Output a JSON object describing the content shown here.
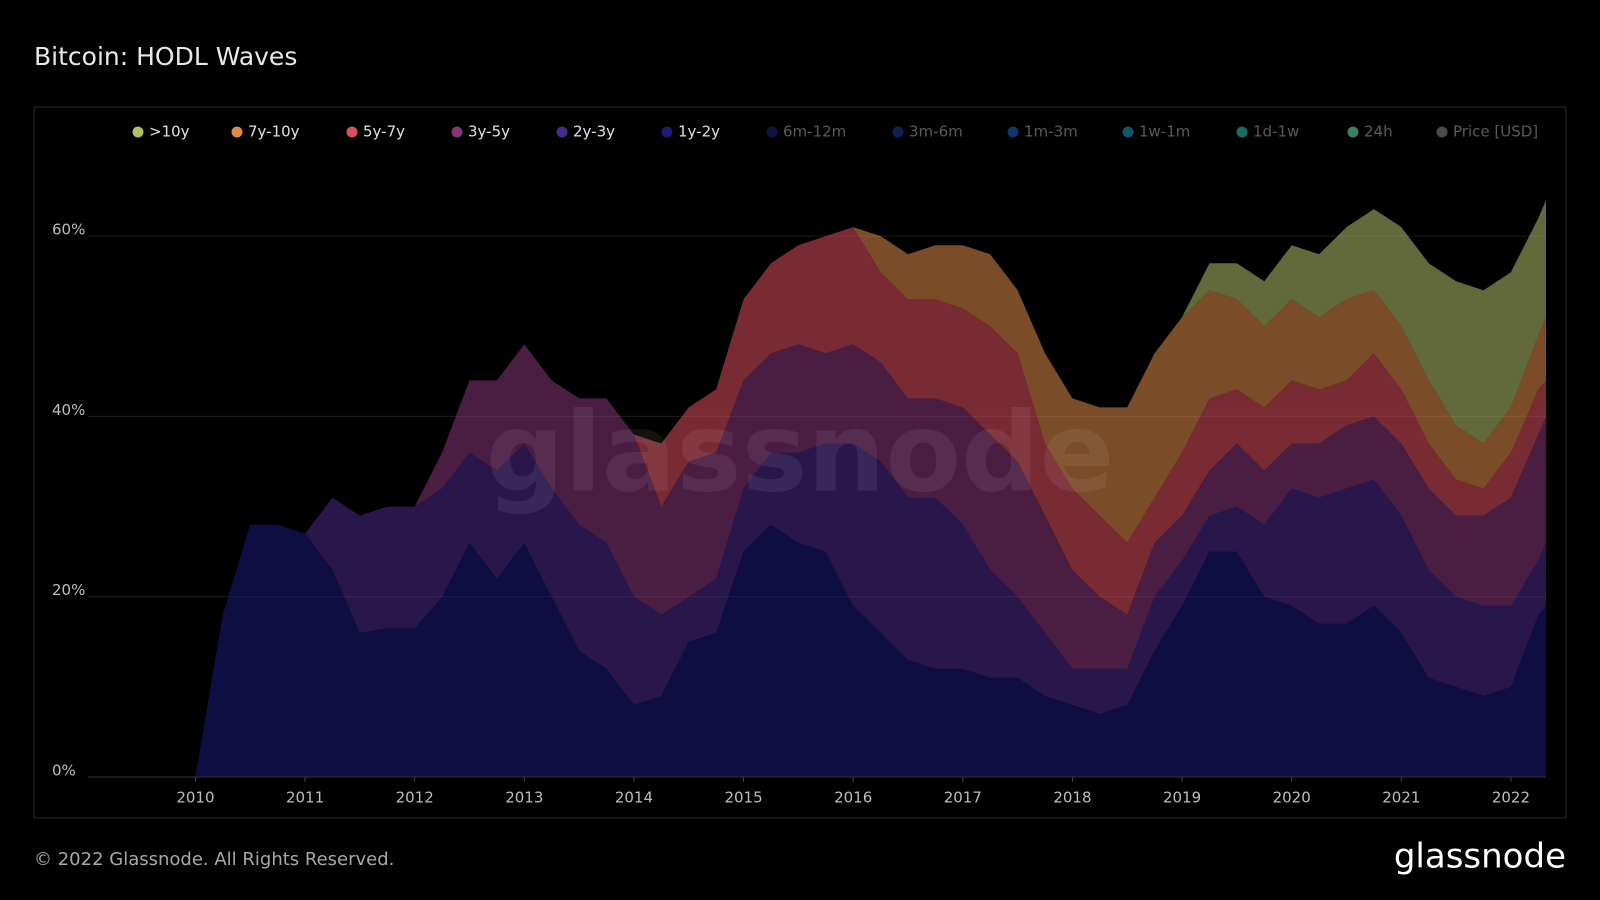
{
  "header": {
    "title": "Bitcoin: HODL Waves"
  },
  "chart_data": {
    "type": "stacked_area",
    "x": [
      2010.0,
      2010.25,
      2010.5,
      2010.75,
      2011.0,
      2011.25,
      2011.5,
      2011.75,
      2012.0,
      2012.25,
      2012.5,
      2012.75,
      2013.0,
      2013.25,
      2013.5,
      2013.75,
      2014.0,
      2014.25,
      2014.5,
      2014.75,
      2015.0,
      2015.25,
      2015.5,
      2015.75,
      2016.0,
      2016.25,
      2016.5,
      2016.75,
      2017.0,
      2017.25,
      2017.5,
      2017.75,
      2018.0,
      2018.25,
      2018.5,
      2018.75,
      2019.0,
      2019.25,
      2019.5,
      2019.75,
      2020.0,
      2020.25,
      2020.5,
      2020.75,
      2021.0,
      2021.25,
      2021.5,
      2021.75,
      2022.0,
      2022.25,
      2022.32
    ],
    "series": [
      {
        "name": "1y-2y",
        "color": "#1c1a7a",
        "values": [
          0,
          18,
          28,
          28,
          27,
          23,
          16,
          16.5,
          16.5,
          20,
          26,
          22,
          26,
          20,
          14,
          12,
          8,
          9,
          15,
          16,
          25,
          28,
          26,
          25,
          19,
          16,
          13,
          12,
          12,
          11,
          11,
          9,
          8,
          7,
          8,
          14,
          19,
          25,
          25,
          20,
          19,
          17,
          17,
          19,
          16,
          11,
          10,
          9,
          10,
          18,
          19
        ]
      },
      {
        "name": "2y-3y",
        "color": "#4a2a8a",
        "values": [
          0,
          0,
          0,
          0,
          0,
          8,
          13,
          13.5,
          13.5,
          12,
          10,
          12,
          11,
          12,
          14,
          14,
          12,
          9,
          5,
          6,
          7,
          8,
          10,
          12,
          18,
          19,
          18,
          19,
          16,
          12,
          9,
          7,
          4,
          5,
          4,
          6,
          5,
          4,
          5,
          8,
          13,
          14,
          15,
          14,
          13,
          12,
          10,
          10,
          9,
          6,
          7
        ]
      },
      {
        "name": "3y-5y",
        "color": "#86347a",
        "values": [
          0,
          0,
          0,
          0,
          0,
          0,
          0,
          0,
          0,
          4,
          8,
          10,
          11,
          12,
          14,
          16,
          18,
          12,
          15,
          14,
          12,
          11,
          12,
          10,
          11,
          11,
          11,
          11,
          13,
          15,
          15,
          13,
          11,
          8,
          6,
          6,
          5,
          5,
          7,
          6,
          5,
          6,
          7,
          7,
          8,
          9,
          9,
          10,
          12,
          14,
          14
        ]
      },
      {
        "name": "5y-7y",
        "color": "#dc4e5c",
        "values": [
          0,
          0,
          0,
          0,
          0,
          0,
          0,
          0,
          0,
          0,
          0,
          0,
          0,
          0,
          0,
          0,
          0,
          7,
          6,
          7,
          9,
          10,
          11,
          13,
          13,
          10,
          11,
          11,
          11,
          12,
          12,
          8,
          9,
          9,
          8,
          5,
          7,
          8,
          6,
          7,
          7,
          6,
          5,
          7,
          6,
          5,
          4,
          3,
          5,
          5,
          4
        ]
      },
      {
        "name": "7y-10y",
        "color": "#e08a48",
        "values": [
          0,
          0,
          0,
          0,
          0,
          0,
          0,
          0,
          0,
          0,
          0,
          0,
          0,
          0,
          0,
          0,
          0,
          0,
          0,
          0,
          0,
          0,
          0,
          0,
          0,
          4,
          5,
          6,
          7,
          8,
          7,
          10,
          10,
          12,
          15,
          16,
          15,
          12,
          10,
          9,
          9,
          8,
          9,
          7,
          7,
          7,
          6,
          5,
          5,
          6,
          7
        ]
      },
      {
        "name": ">10y",
        "color": "#b3bf6a",
        "values": [
          0,
          0,
          0,
          0,
          0,
          0,
          0,
          0,
          0,
          0,
          0,
          0,
          0,
          0,
          0,
          0,
          0,
          0,
          0,
          0,
          0,
          0,
          0,
          0,
          0,
          0,
          0,
          0,
          0,
          0,
          0,
          0,
          0,
          0,
          0,
          0,
          0,
          3,
          4,
          5,
          6,
          7,
          8,
          9,
          11,
          13,
          16,
          17,
          15,
          13,
          13
        ]
      }
    ],
    "inactive_series": [
      {
        "name": "6m-12m",
        "color": "#1a2580"
      },
      {
        "name": "3m-6m",
        "color": "#1d3d9a"
      },
      {
        "name": "1m-3m",
        "color": "#1a64c0"
      },
      {
        "name": "1w-1m",
        "color": "#1a9ec6"
      },
      {
        "name": "1d-1w",
        "color": "#2cc9b0"
      },
      {
        "name": "24h",
        "color": "#6ee8b0"
      },
      {
        "name": "Price [USD]",
        "color": "#8a8a8a"
      }
    ],
    "xlim": [
      2009.02,
      2022.32
    ],
    "xticks": [
      2010,
      2011,
      2012,
      2013,
      2014,
      2015,
      2016,
      2017,
      2018,
      2019,
      2020,
      2021,
      2022
    ],
    "ylim": [
      0,
      70
    ],
    "yticks": [
      {
        "value": 0,
        "label": "0%"
      },
      {
        "value": 20,
        "label": "20%"
      },
      {
        "value": 40,
        "label": "40%"
      },
      {
        "value": 60,
        "label": "60%"
      }
    ],
    "grid": true,
    "watermark": "glassnode"
  },
  "footer": {
    "copyright": "© 2022 Glassnode. All Rights Reserved.",
    "logo": "glassnode"
  }
}
